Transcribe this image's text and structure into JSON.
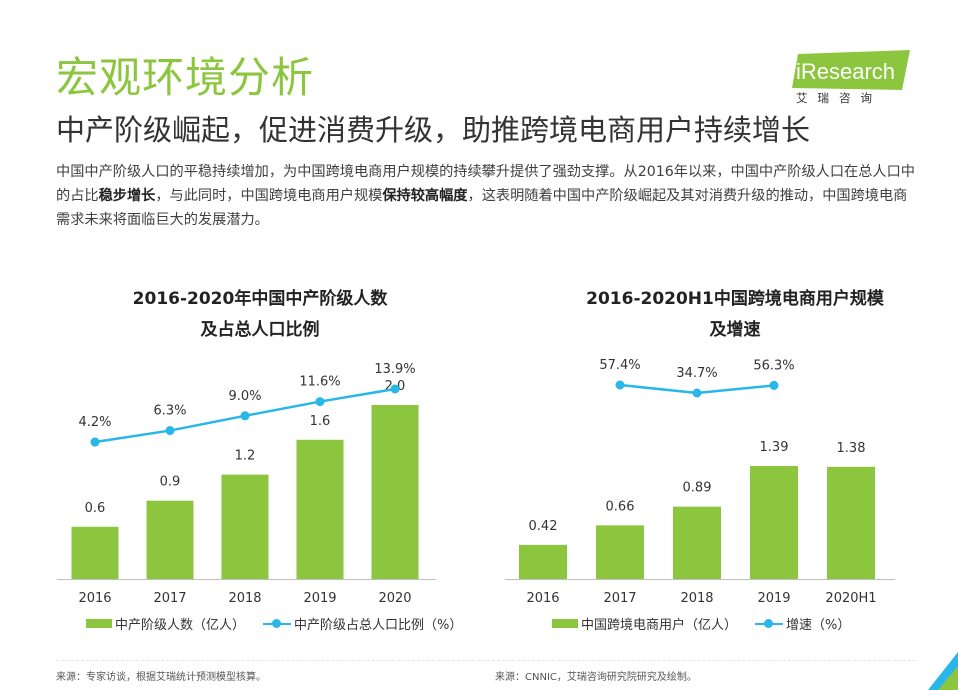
{
  "header": {
    "title": "宏观环境分析",
    "subtitle": "中产阶级崛起，促进消费升级，助推跨境电商用户持续增长"
  },
  "intro": {
    "p1": "中国中产阶级人口的平稳持续增加，为中国跨境电商用户规模的持续攀升提供了强劲支撑。从2016年以来，中国中产阶级人口在总人口中的占比",
    "b1": "稳步增长",
    "p2": "，与此同时，中国跨境电商用户规模",
    "b2": "保持较高幅度",
    "p3": "，这表明随着中国中产阶级崛起及其对消费升级的推动，中国跨境电商需求未来将面临巨大的发展潜力。"
  },
  "logo": {
    "brand": "iResearch",
    "sub": "艾瑞咨询"
  },
  "colors": {
    "accent": "#8cc63f",
    "line": "#29b6e8"
  },
  "chart_data": [
    {
      "type": "bar",
      "title_line1": "2016-2020年中国中产阶级人数",
      "title_line2": "及占总人口比例",
      "categories": [
        "2016",
        "2017",
        "2018",
        "2019",
        "2020"
      ],
      "series": [
        {
          "name": "中产阶级人数（亿人）",
          "type": "bar",
          "values": [
            0.6,
            0.9,
            1.2,
            1.6,
            2.0
          ],
          "labels": [
            "0.6",
            "0.9",
            "1.2",
            "1.6",
            "2.0"
          ]
        },
        {
          "name": "中产阶级占总人口比例（%）",
          "type": "line",
          "values": [
            4.2,
            6.3,
            9.0,
            11.6,
            13.9
          ],
          "labels": [
            "4.2%",
            "6.3%",
            "9.0%",
            "11.6%",
            "13.9%"
          ]
        }
      ],
      "bar_ylim": [
        0,
        2.0
      ],
      "line_ylim": [
        0,
        13.9
      ],
      "source": "来源：专家访谈，根据艾瑞统计预测模型核算。"
    },
    {
      "type": "bar",
      "title_line1": "2016-2020H1中国跨境电商用户规模",
      "title_line2": "及增速",
      "categories": [
        "2016",
        "2017",
        "2018",
        "2019",
        "2020H1"
      ],
      "series": [
        {
          "name": "中国跨境电商用户（亿人）",
          "type": "bar",
          "values": [
            0.42,
            0.66,
            0.89,
            1.39,
            1.38
          ],
          "labels": [
            "0.42",
            "0.66",
            "0.89",
            "1.39",
            "1.38"
          ]
        },
        {
          "name": "增速（%）",
          "type": "line",
          "values": [
            null,
            57.4,
            34.7,
            56.3,
            null
          ],
          "labels": [
            "",
            "57.4%",
            "34.7%",
            "56.3%",
            ""
          ]
        }
      ],
      "bar_ylim": [
        0,
        1.39
      ],
      "line_ylim": [
        34.7,
        57.4
      ],
      "source": "来源：CNNIC，艾瑞咨询研究院研究及绘制。"
    }
  ]
}
